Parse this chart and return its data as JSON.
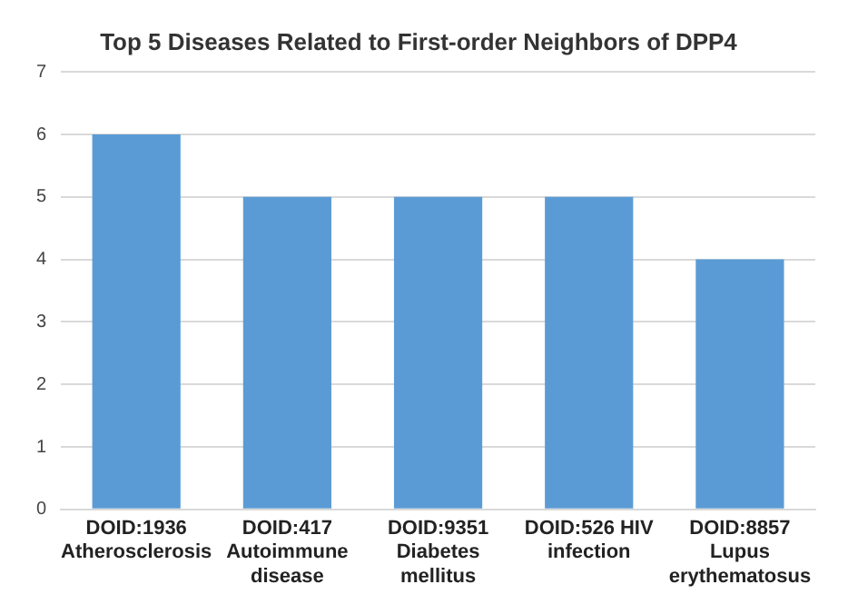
{
  "chart_data": {
    "type": "bar",
    "title": "Top 5 Diseases Related to First-order Neighbors of DPP4",
    "categories": [
      "DOID:1936 Atherosclerosis",
      "DOID:417 Autoimmune disease",
      "DOID:9351 Diabetes mellitus",
      "DOID:526 HIV infection",
      "DOID:8857 Lupus erythematosus"
    ],
    "values": [
      6,
      5,
      5,
      5,
      4
    ],
    "color": "#5b9bd5",
    "ylim": [
      0,
      7
    ],
    "yticks": [
      0,
      1,
      2,
      3,
      4,
      5,
      6,
      7
    ],
    "grid": "y"
  }
}
